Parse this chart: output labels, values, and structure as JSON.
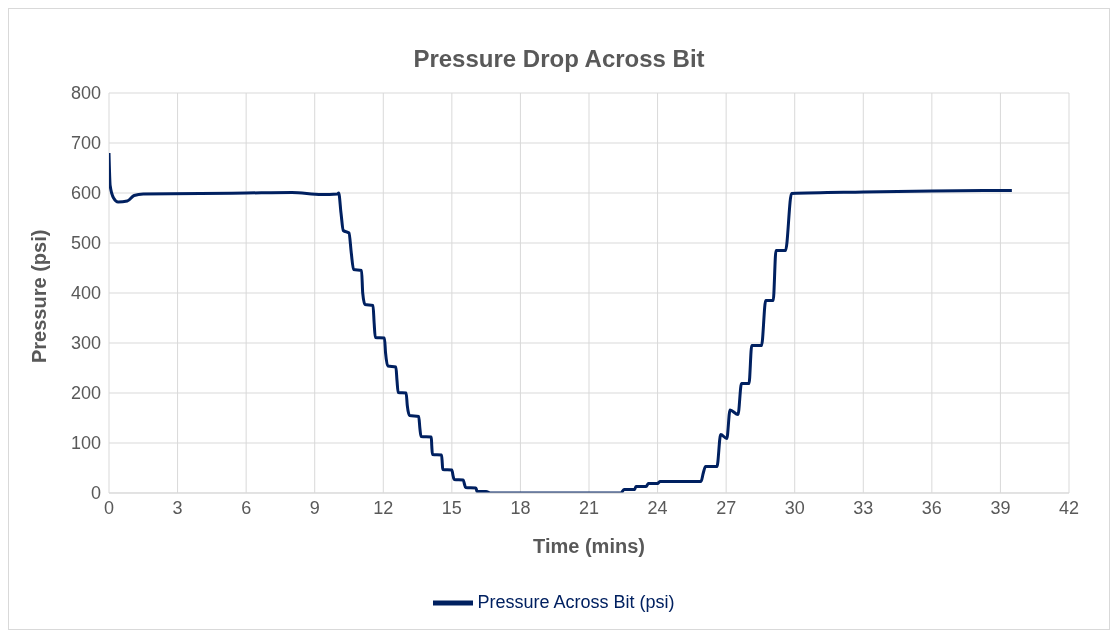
{
  "chart_data": {
    "type": "line",
    "title": "Pressure Drop Across Bit",
    "xlabel": "Time (mins)",
    "ylabel": "Pressure (psi)",
    "xlim": [
      0,
      42
    ],
    "xticks": [
      0,
      3,
      6,
      9,
      12,
      15,
      18,
      21,
      24,
      27,
      30,
      33,
      36,
      39,
      42
    ],
    "ylim": [
      0,
      800
    ],
    "yticks": [
      0,
      100,
      200,
      300,
      400,
      500,
      600,
      700,
      800
    ],
    "grid": true,
    "legend": "bottom",
    "marker": "none",
    "line_style": "solid",
    "series": [
      {
        "name": "Pressure Across Bit (psi)",
        "color": "#002060",
        "x": [
          0,
          0.05,
          0.2,
          0.4,
          0.8,
          1.1,
          1.5,
          4,
          6,
          8,
          9.3,
          10,
          10.05,
          10.15,
          10.25,
          10.5,
          10.6,
          10.7,
          11.05,
          11.1,
          11.2,
          11.55,
          11.6,
          11.65,
          12.05,
          12.1,
          12.2,
          12.55,
          12.6,
          12.65,
          13.0,
          13.05,
          13.15,
          13.55,
          13.6,
          13.65,
          14.1,
          14.12,
          14.15,
          14.55,
          14.58,
          14.6,
          15.0,
          15.05,
          15.1,
          15.5,
          15.55,
          15.6,
          16.05,
          16.08,
          16.1,
          16.5,
          16.7,
          18,
          21,
          22.4,
          22.53,
          23.0,
          23.05,
          23.5,
          23.6,
          24.0,
          24.1,
          25.9,
          26.0,
          26.1,
          26.6,
          26.76,
          27.03,
          27.17,
          27.52,
          27.67,
          28.0,
          28.12,
          28.55,
          28.73,
          29.06,
          29.18,
          29.6,
          29.86,
          33,
          36,
          39.5
        ],
        "values": [
          680,
          615,
          590,
          582,
          584,
          595,
          598,
          599,
          600,
          601,
          597,
          598,
          600,
          560,
          525,
          520,
          480,
          447,
          445,
          400,
          377,
          375,
          340,
          311,
          310,
          280,
          254,
          252,
          225,
          201,
          200,
          175,
          155,
          153,
          130,
          113,
          112,
          95,
          77,
          76,
          60,
          47,
          46,
          35,
          27,
          26,
          18,
          11,
          10,
          6,
          3,
          3,
          0,
          0,
          0,
          0,
          7,
          7,
          13,
          13,
          19,
          19,
          23,
          23,
          40,
          53,
          53,
          117,
          109,
          166,
          157,
          219,
          219,
          295,
          295,
          385,
          385,
          485,
          485,
          599,
          602,
          604,
          605
        ]
      }
    ]
  }
}
